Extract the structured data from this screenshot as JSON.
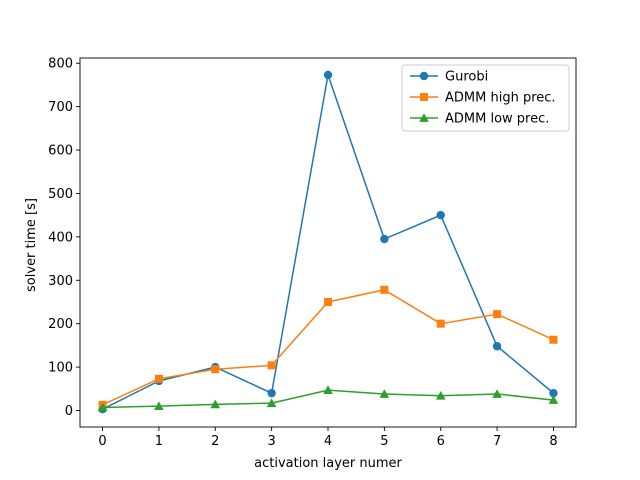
{
  "chart_data": {
    "type": "line",
    "xlabel": "activation layer numer",
    "ylabel": "solver time [s]",
    "x": [
      0,
      1,
      2,
      3,
      4,
      5,
      6,
      7,
      8
    ],
    "xticks": [
      "0",
      "1",
      "2",
      "3",
      "4",
      "5",
      "6",
      "7",
      "8"
    ],
    "yticks": [
      "0",
      "100",
      "200",
      "300",
      "400",
      "500",
      "600",
      "700",
      "800"
    ],
    "xlim": [
      -0.4,
      8.4
    ],
    "ylim": [
      -38,
      812
    ],
    "grid": false,
    "legend_position": "top-right",
    "series": [
      {
        "name": "Gurobi",
        "marker": "circle",
        "color": "#1f77b4",
        "values": [
          3,
          68,
          100,
          40,
          773,
          395,
          450,
          148,
          40
        ]
      },
      {
        "name": "ADMM high prec.",
        "marker": "square",
        "color": "#ff7f0e",
        "values": [
          13,
          73,
          95,
          104,
          250,
          278,
          200,
          222,
          163
        ]
      },
      {
        "name": "ADMM low prec.",
        "marker": "triangle",
        "color": "#2ca02c",
        "values": [
          7,
          10,
          14,
          17,
          47,
          38,
          34,
          38,
          24
        ]
      }
    ]
  }
}
